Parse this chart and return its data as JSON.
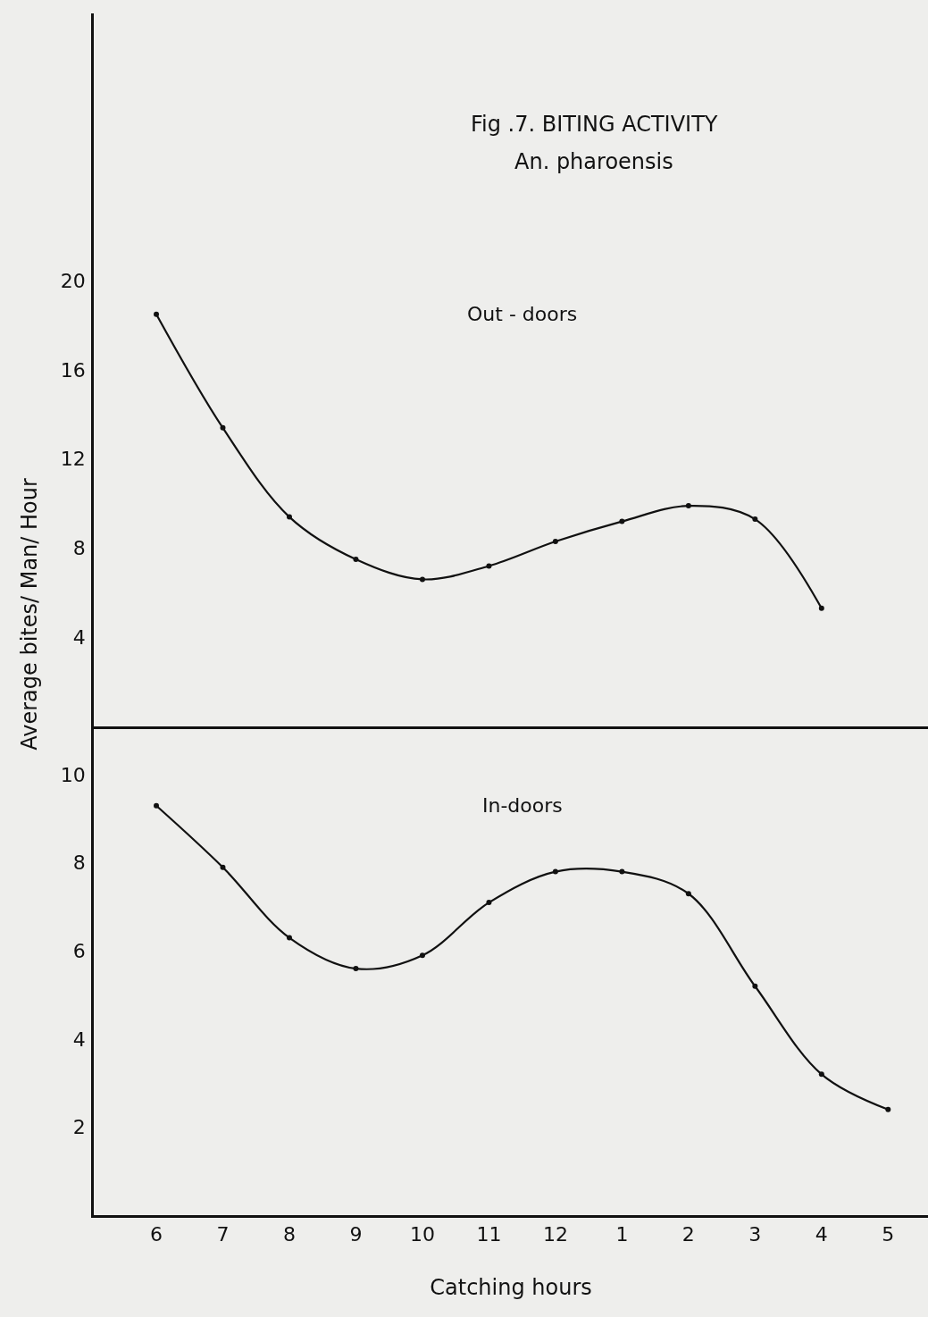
{
  "chart_data": [
    {
      "type": "line",
      "title": "Fig .7. BITING ACTIVITY",
      "subtitle": "An. pharoensis",
      "ylabel": "Average bites/ Man/ Hour",
      "categories": [
        "6",
        "7",
        "8",
        "9",
        "10",
        "11",
        "12",
        "1",
        "2",
        "3",
        "4",
        "5"
      ],
      "series": [
        {
          "name": "Out - doors",
          "color": "#111111",
          "values": [
            18.5,
            13.4,
            9.4,
            7.5,
            6.6,
            7.2,
            8.3,
            9.2,
            9.9,
            9.3,
            5.3,
            null
          ]
        }
      ],
      "ylim": [
        0,
        32
      ],
      "yticks": [
        4,
        8,
        12,
        16,
        20
      ],
      "tick_labels": "y",
      "marker": "circle",
      "line_style": "solid",
      "grid": false,
      "legend": false
    },
    {
      "type": "line",
      "xlabel": "Catching hours",
      "categories": [
        "6",
        "7",
        "8",
        "9",
        "10",
        "11",
        "12",
        "1",
        "2",
        "3",
        "4",
        "5"
      ],
      "series": [
        {
          "name": "In-doors",
          "color": "#111111",
          "values": [
            9.3,
            7.9,
            6.3,
            5.6,
            5.9,
            7.1,
            7.8,
            7.8,
            7.3,
            5.2,
            3.2,
            2.4
          ]
        }
      ],
      "ylim": [
        0,
        11.1
      ],
      "yticks": [
        2,
        4,
        6,
        8,
        10
      ],
      "marker": "circle",
      "line_style": "solid",
      "grid": false,
      "legend": false
    }
  ]
}
